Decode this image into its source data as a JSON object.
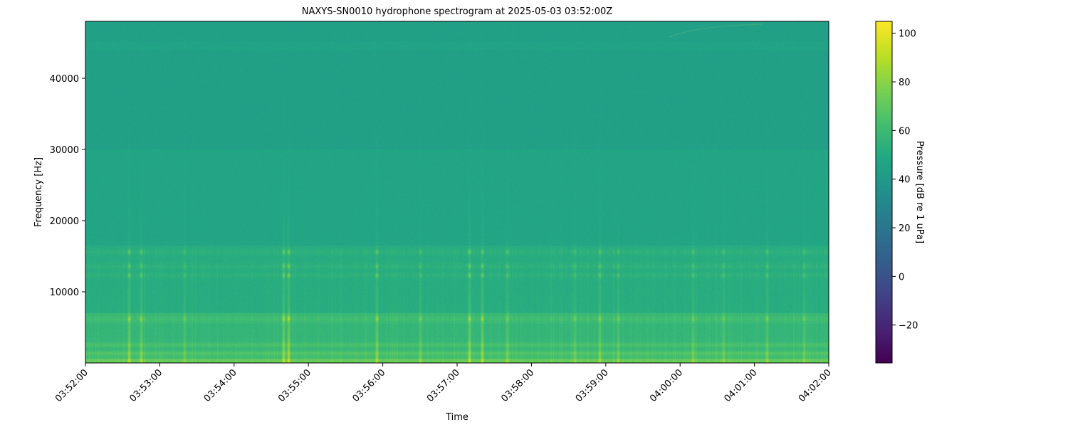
{
  "chart_data": {
    "type": "heatmap",
    "title": "NAXYS-SN0010 hydrophone spectrogram at 2025-05-03 03:52:00Z",
    "xlabel": "Time",
    "ylabel": "Frequency [Hz]",
    "colorbar_label": "Pressure [dB re 1 uPa]",
    "colormap": "viridis",
    "xlim": [
      "03:52:00",
      "04:02:00"
    ],
    "ylim": [
      0,
      48000
    ],
    "clim": [
      -35.6,
      104.9
    ],
    "x_ticks": [
      "03:52:00",
      "03:53:00",
      "03:54:00",
      "03:55:00",
      "03:56:00",
      "03:57:00",
      "03:58:00",
      "03:59:00",
      "04:00:00",
      "04:01:00",
      "04:02:00"
    ],
    "y_ticks": [
      10000,
      20000,
      30000,
      40000
    ],
    "colorbar_ticks": [
      -20,
      0,
      20,
      40,
      60,
      80,
      100
    ],
    "band_levels_db": [
      {
        "f_low": 0,
        "f_high": 600,
        "db": 68
      },
      {
        "f_low": 600,
        "f_high": 1500,
        "db": 63
      },
      {
        "f_low": 1500,
        "f_high": 3000,
        "db": 60
      },
      {
        "f_low": 3000,
        "f_high": 5500,
        "db": 56
      },
      {
        "f_low": 5500,
        "f_high": 7000,
        "db": 58
      },
      {
        "f_low": 7000,
        "f_high": 16500,
        "db": 51
      },
      {
        "f_low": 16500,
        "f_high": 30000,
        "db": 47
      },
      {
        "f_low": 30000,
        "f_high": 48000,
        "db": 44
      }
    ],
    "tonal_bands_hz": [
      6200,
      12300,
      13600,
      15600
    ],
    "transients": [
      {
        "time": "03:52:35",
        "peak_db": 85
      },
      {
        "time": "03:52:45",
        "peak_db": 82
      },
      {
        "time": "03:53:20",
        "peak_db": 74
      },
      {
        "time": "03:54:40",
        "peak_db": 88
      },
      {
        "time": "03:54:44",
        "peak_db": 90
      },
      {
        "time": "03:55:55",
        "peak_db": 84
      },
      {
        "time": "03:56:30",
        "peak_db": 76
      },
      {
        "time": "03:57:10",
        "peak_db": 88
      },
      {
        "time": "03:57:20",
        "peak_db": 86
      },
      {
        "time": "03:57:40",
        "peak_db": 78
      },
      {
        "time": "03:58:35",
        "peak_db": 76
      },
      {
        "time": "03:58:55",
        "peak_db": 82
      },
      {
        "time": "03:59:10",
        "peak_db": 76
      },
      {
        "time": "04:00:10",
        "peak_db": 78
      },
      {
        "time": "04:00:35",
        "peak_db": 76
      },
      {
        "time": "04:01:10",
        "peak_db": 78
      },
      {
        "time": "04:01:40",
        "peak_db": 76
      }
    ]
  }
}
